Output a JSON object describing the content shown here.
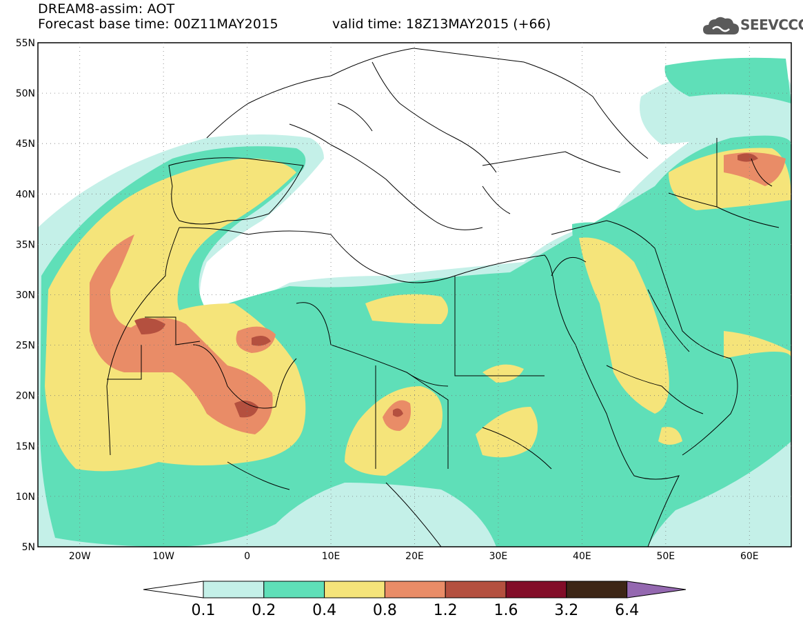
{
  "header": {
    "line1": "DREAM8-assim: AOT",
    "line2_base": "Forecast base time: 00Z11MAY2015",
    "line2_valid": "valid time: 18Z13MAY2015 (+66)",
    "logo_text": "SEEVCCC",
    "logo_icon": "cloud-icon"
  },
  "map": {
    "lon_range": [
      -25,
      65
    ],
    "lat_range": [
      5,
      55
    ],
    "lat_ticks": [
      "55N",
      "50N",
      "45N",
      "40N",
      "35N",
      "30N",
      "25N",
      "20N",
      "15N",
      "10N",
      "5N"
    ],
    "lon_ticks": [
      "20W",
      "10W",
      "0",
      "10E",
      "20E",
      "30E",
      "40E",
      "50E",
      "60E"
    ]
  },
  "colorbar": {
    "labels": [
      "0.1",
      "0.2",
      "0.4",
      "0.8",
      "1.2",
      "1.6",
      "3.2",
      "6.4"
    ],
    "colors": [
      "#c4f0e8",
      "#5fdfb8",
      "#f5e47a",
      "#e98c67",
      "#b4503f",
      "#820d28",
      "#3d2616",
      "#9468b0"
    ],
    "under_color": "#ffffff"
  },
  "palette": {
    "c1": "#c4f0e8",
    "c2": "#5fdfb8",
    "c3": "#f5e47a",
    "c4": "#e98c67",
    "c5": "#b4503f",
    "border": "#000000"
  }
}
